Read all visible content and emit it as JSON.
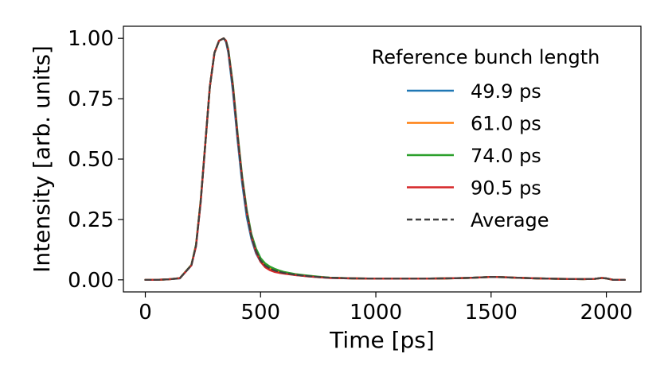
{
  "chart_data": {
    "type": "line",
    "xlabel": "Time [ps]",
    "ylabel": "Intensity [arb. units]",
    "xlim": [
      -95,
      2150
    ],
    "ylim": [
      -0.05,
      1.05
    ],
    "xticks": [
      0,
      500,
      1000,
      1500,
      2000
    ],
    "yticks": [
      0.0,
      0.25,
      0.5,
      0.75,
      1.0
    ],
    "xtick_labels": [
      "0",
      "500",
      "1000",
      "1500",
      "2000"
    ],
    "ytick_labels": [
      "0.00",
      "0.25",
      "0.50",
      "0.75",
      "1.00"
    ],
    "grid": false,
    "legend": {
      "title": "Reference bunch length",
      "placement": "top-right",
      "entries": [
        "49.9 ps",
        "61.0 ps",
        "74.0 ps",
        "90.5 ps",
        "Average"
      ]
    },
    "x": [
      0,
      50,
      100,
      150,
      200,
      220,
      240,
      260,
      280,
      300,
      320,
      340,
      350,
      360,
      380,
      400,
      420,
      440,
      460,
      480,
      500,
      520,
      540,
      560,
      580,
      600,
      650,
      700,
      750,
      800,
      900,
      1000,
      1100,
      1200,
      1300,
      1400,
      1500,
      1550,
      1600,
      1700,
      1800,
      1900,
      1950,
      1980,
      2000,
      2030,
      2080
    ],
    "series": [
      {
        "name": "49.9 ps",
        "color": "#1f77b4",
        "dashed": false,
        "values": [
          0.0,
          0.0,
          0.002,
          0.006,
          0.06,
          0.14,
          0.32,
          0.56,
          0.8,
          0.94,
          0.99,
          1.0,
          0.985,
          0.94,
          0.78,
          0.58,
          0.4,
          0.26,
          0.17,
          0.11,
          0.075,
          0.055,
          0.045,
          0.038,
          0.032,
          0.028,
          0.02,
          0.015,
          0.011,
          0.008,
          0.006,
          0.005,
          0.005,
          0.005,
          0.006,
          0.008,
          0.012,
          0.011,
          0.009,
          0.006,
          0.004,
          0.003,
          0.004,
          0.008,
          0.006,
          0.0,
          0.0
        ]
      },
      {
        "name": "61.0 ps",
        "color": "#ff7f0e",
        "dashed": false,
        "values": [
          0.0,
          0.0,
          0.002,
          0.007,
          0.062,
          0.145,
          0.325,
          0.56,
          0.8,
          0.94,
          0.99,
          1.0,
          0.99,
          0.95,
          0.8,
          0.6,
          0.42,
          0.28,
          0.18,
          0.12,
          0.08,
          0.06,
          0.048,
          0.04,
          0.034,
          0.029,
          0.021,
          0.016,
          0.012,
          0.009,
          0.006,
          0.005,
          0.005,
          0.005,
          0.006,
          0.008,
          0.012,
          0.011,
          0.009,
          0.006,
          0.004,
          0.003,
          0.004,
          0.008,
          0.006,
          0.0,
          0.0
        ]
      },
      {
        "name": "74.0 ps",
        "color": "#2ca02c",
        "dashed": false,
        "values": [
          0.0,
          0.0,
          0.002,
          0.007,
          0.062,
          0.145,
          0.325,
          0.56,
          0.8,
          0.94,
          0.99,
          1.0,
          0.99,
          0.955,
          0.81,
          0.61,
          0.43,
          0.29,
          0.19,
          0.13,
          0.09,
          0.068,
          0.055,
          0.046,
          0.039,
          0.033,
          0.024,
          0.018,
          0.013,
          0.009,
          0.006,
          0.005,
          0.005,
          0.005,
          0.006,
          0.008,
          0.012,
          0.011,
          0.009,
          0.006,
          0.004,
          0.003,
          0.004,
          0.008,
          0.006,
          0.0,
          0.0
        ]
      },
      {
        "name": "90.5 ps",
        "color": "#d62728",
        "dashed": false,
        "values": [
          0.0,
          0.0,
          0.002,
          0.007,
          0.06,
          0.14,
          0.32,
          0.56,
          0.8,
          0.94,
          0.99,
          1.0,
          0.99,
          0.95,
          0.8,
          0.6,
          0.42,
          0.28,
          0.18,
          0.115,
          0.075,
          0.052,
          0.04,
          0.033,
          0.029,
          0.026,
          0.02,
          0.015,
          0.011,
          0.008,
          0.006,
          0.005,
          0.005,
          0.005,
          0.006,
          0.008,
          0.012,
          0.011,
          0.009,
          0.006,
          0.004,
          0.003,
          0.004,
          0.008,
          0.006,
          0.0,
          0.0
        ]
      },
      {
        "name": "Average",
        "color": "#404040",
        "dashed": true,
        "values": [
          0.0,
          0.0,
          0.002,
          0.007,
          0.061,
          0.143,
          0.323,
          0.56,
          0.8,
          0.94,
          0.99,
          1.0,
          0.99,
          0.95,
          0.8,
          0.6,
          0.42,
          0.28,
          0.18,
          0.12,
          0.08,
          0.059,
          0.047,
          0.039,
          0.033,
          0.029,
          0.021,
          0.016,
          0.012,
          0.009,
          0.006,
          0.005,
          0.005,
          0.005,
          0.006,
          0.008,
          0.012,
          0.011,
          0.009,
          0.006,
          0.004,
          0.003,
          0.004,
          0.008,
          0.006,
          0.0,
          0.0
        ]
      }
    ]
  }
}
